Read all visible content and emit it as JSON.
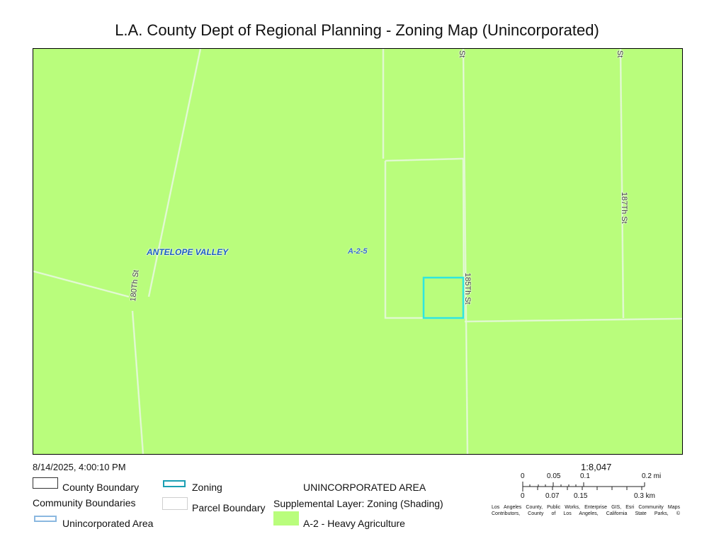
{
  "title": "L.A. County Dept of Regional Planning - Zoning Map (Unincorporated)",
  "map": {
    "fill_color": "#b9fd7c",
    "selection_color": "#2ee6e0",
    "streets": {
      "top_st_1": "St",
      "top_st_2": "St",
      "st_187": "187Th St",
      "st_185": "185Th St",
      "st_180": "180Th St"
    },
    "community_label": "ANTELOPE VALLEY",
    "zone_label": "A-2-5"
  },
  "timestamp": "8/14/2025, 4:00:10 PM",
  "legend": {
    "county_boundary": "County Boundary",
    "community_boundaries": "Community Boundaries",
    "unincorporated_area": "Unincorporated Area",
    "zoning": "Zoning",
    "parcel_boundary": "Parcel Boundary",
    "unincorporated_heading": "UNINCORPORATED AREA",
    "supplemental": "Supplemental Layer: Zoning (Shading)",
    "a2": "A-2 - Heavy Agriculture",
    "colors": {
      "zoning_outline": "#1a9fb3",
      "unincorporated_outline": "#8bb8e0",
      "a2_fill": "#b9fd7c"
    }
  },
  "scale": {
    "ratio": "1:8,047",
    "mi_ticks": [
      "0",
      "0.05",
      "0.1",
      "0.2 mi"
    ],
    "km_ticks": [
      "0",
      "0.07",
      "0.15",
      "0.3 km"
    ],
    "credits": "Los Angeles County, Public Works, Enterprise GIS, Esri Community Maps Contributors, County of Los Angeles, California State Parks, ©"
  }
}
